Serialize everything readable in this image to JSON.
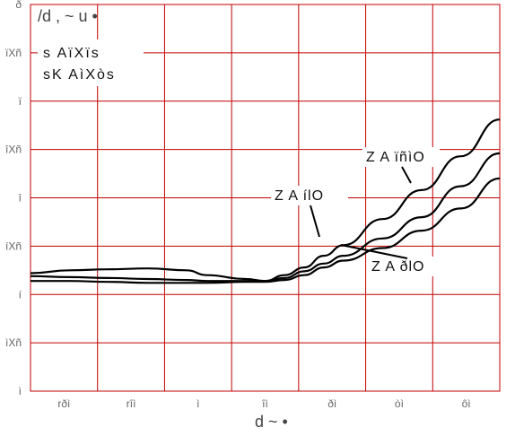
{
  "chart_data": {
    "type": "line",
    "title": "",
    "ylabel": "/d , ~ u  •",
    "xlabel": "d ~  •",
    "grid": true,
    "grid_color": "#c00000",
    "line_color": "#000000",
    "background": "#ffffff",
    "xlim": [
      -60,
      60
    ],
    "ylim": [
      1,
      5
    ],
    "x_ticks": [
      -50,
      -30,
      0,
      30,
      50,
      60,
      70
    ],
    "x_tick_labels": [
      "rðì",
      "rîì",
      "ì",
      "îì",
      "ðì",
      "òì",
      "ôì"
    ],
    "y_ticks": [
      1,
      1.5,
      2,
      2.5,
      3,
      3.5,
      4,
      4.5,
      5
    ],
    "y_tick_labels": [
      "ì",
      "ìXñ",
      "í",
      "íXñ",
      "î",
      "îXñ",
      "ï",
      "ïXñ",
      "ð"
    ],
    "annotations": [
      "s AïXïs",
      "sK AìXòs"
    ],
    "series": [
      {
        "name": "Z A ïñìO",
        "x": [
          -60,
          -50,
          -40,
          -30,
          -20,
          -15,
          -5,
          0,
          5,
          10,
          15,
          20,
          30,
          40,
          50,
          60
        ],
        "y": [
          2.22,
          2.25,
          2.26,
          2.27,
          2.25,
          2.2,
          2.16,
          2.14,
          2.2,
          2.28,
          2.4,
          2.51,
          2.78,
          3.08,
          3.43,
          3.81
        ]
      },
      {
        "name": "Z A ílO",
        "x": [
          -60,
          -50,
          -40,
          -30,
          -20,
          -15,
          -5,
          0,
          5,
          10,
          15,
          20,
          30,
          40,
          50,
          60
        ],
        "y": [
          2.19,
          2.18,
          2.17,
          2.16,
          2.15,
          2.14,
          2.14,
          2.14,
          2.17,
          2.24,
          2.32,
          2.4,
          2.58,
          2.8,
          3.12,
          3.46
        ]
      },
      {
        "name": "Z A ðlO",
        "x": [
          -60,
          -50,
          -40,
          -30,
          -20,
          -15,
          -5,
          0,
          5,
          10,
          15,
          20,
          30,
          40,
          50,
          60
        ],
        "y": [
          2.14,
          2.14,
          2.13,
          2.12,
          2.12,
          2.12,
          2.13,
          2.13,
          2.15,
          2.2,
          2.28,
          2.35,
          2.48,
          2.66,
          2.89,
          3.2
        ]
      }
    ]
  }
}
